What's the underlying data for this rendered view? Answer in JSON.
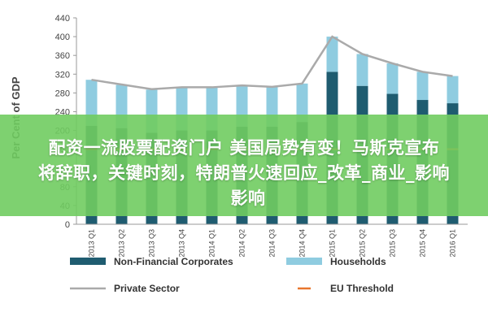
{
  "chart_data": {
    "type": "bar",
    "stacked": true,
    "ylabel": "Per Cent of GDP",
    "ylim": [
      0,
      440
    ],
    "yticks": [
      0,
      40,
      80,
      120,
      160,
      200,
      240,
      280,
      320,
      360,
      400,
      440
    ],
    "categories": [
      "2013 Q1",
      "2013 Q2",
      "2013 Q3",
      "2013 Q4",
      "2014 Q1",
      "2014 Q2",
      "2014 Q3",
      "2014 Q4",
      "2015 Q1",
      "2015 Q2",
      "2015 Q3",
      "2015 Q4",
      "2016 Q1"
    ],
    "series": [
      {
        "name": "Non-Financial Corporates",
        "kind": "bar",
        "color": "#1f5c70",
        "values": [
          210,
          205,
          195,
          200,
          200,
          208,
          208,
          218,
          325,
          295,
          278,
          265,
          258
        ]
      },
      {
        "name": "Households",
        "kind": "bar",
        "color": "#8fcce0",
        "values": [
          98,
          92,
          92,
          92,
          92,
          88,
          85,
          82,
          75,
          68,
          65,
          60,
          58
        ]
      },
      {
        "name": "Private Sector",
        "kind": "line",
        "color": "#aaaaaa",
        "values": [
          308,
          298,
          288,
          292,
          292,
          296,
          293,
          300,
          400,
          363,
          343,
          325,
          316
        ]
      },
      {
        "name": "EU Threshold",
        "kind": "dashed",
        "color": "#e8762d",
        "values": [
          160,
          160,
          160,
          160,
          160,
          160,
          160,
          160,
          160,
          160,
          160,
          160,
          160
        ]
      }
    ],
    "legend": "bottom",
    "grid": false
  },
  "overlay": {
    "lines": [
      "配资一流股票配资门户 美国局势有变！马斯克宣布",
      "将辞职，关键时刻，特朗普火速回应_改革_商业_影响",
      "影响"
    ]
  }
}
